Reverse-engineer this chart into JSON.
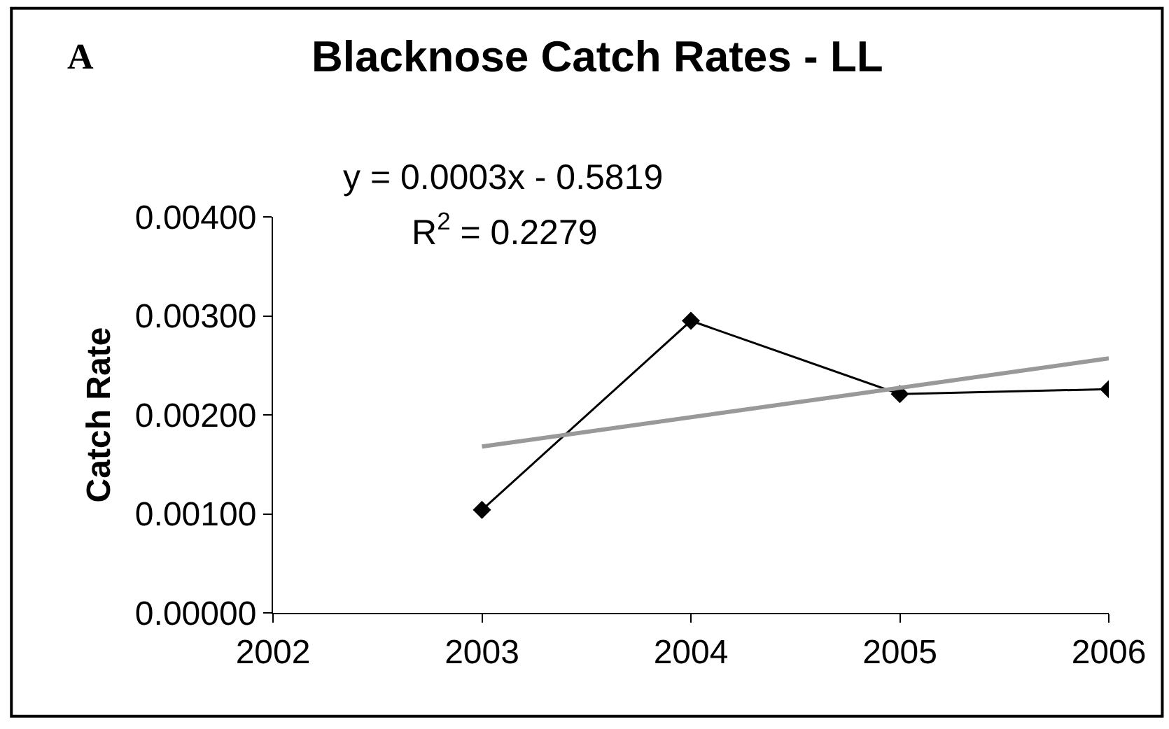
{
  "chart_data": {
    "type": "line",
    "title": "Blacknose Catch Rates - LL",
    "ylabel": "Catch Rate",
    "annotations": [
      "A",
      "y = 0.0003x - 0.5819",
      "R$^{2}$ = 0.2279"
    ],
    "x": [
      2003,
      2004,
      2005,
      2006
    ],
    "series": [
      {
        "color": "#000000",
        "values": [
          0.00104,
          0.00295,
          0.00221,
          0.00226
        ],
        "marker": "diamond"
      },
      {
        "type": "line",
        "color": "#999999",
        "x": [
          2003,
          2006
        ],
        "values": [
          0.00168,
          0.00257
        ],
        "marker": "none"
      }
    ],
    "xlim": [
      2002,
      2006
    ],
    "xticks": [
      2002,
      2003,
      2004,
      2005,
      2006
    ],
    "ylim": [
      0,
      0.004
    ],
    "yticks": [
      {
        "value": 0,
        "label": "0.00000"
      },
      {
        "value": 0.001,
        "label": "0.00100"
      },
      {
        "value": 0.002,
        "label": "0.00200"
      },
      {
        "value": 0.003,
        "label": "0.00300"
      },
      {
        "value": 0.004,
        "label": "0.00400"
      }
    ],
    "line_style": "solid"
  }
}
